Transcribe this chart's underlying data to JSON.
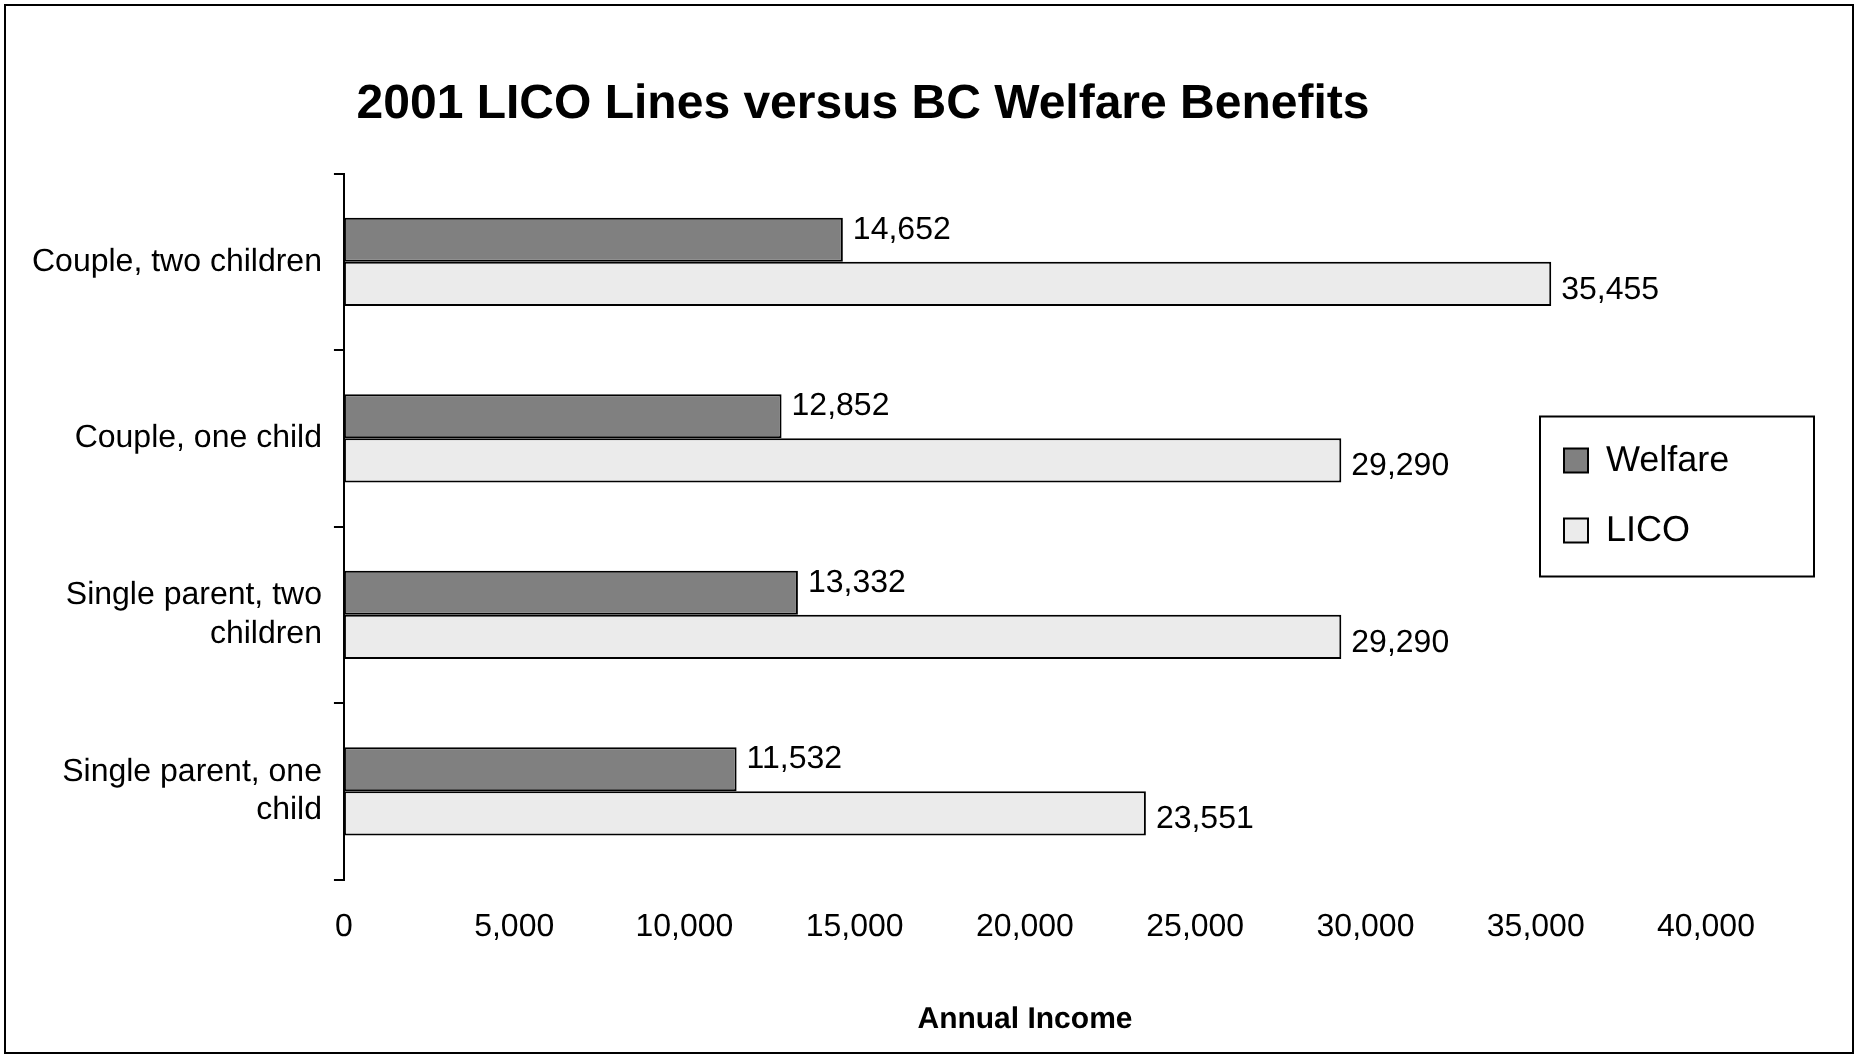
{
  "chart_data": {
    "type": "bar",
    "orientation": "horizontal",
    "title": "2001 LICO Lines versus BC Welfare Benefits",
    "xlabel": "Annual Income",
    "categories": [
      "Couple, two children",
      "Couple, one child",
      "Single parent, two children",
      "Single parent, one child"
    ],
    "series": [
      {
        "name": "Welfare",
        "color": "#808080",
        "values": [
          14652,
          12852,
          13332,
          11532
        ],
        "value_labels": [
          "14,652",
          "12,852",
          "13,332",
          "11,532"
        ]
      },
      {
        "name": "LICO",
        "color": "#ebebeb",
        "values": [
          35455,
          29290,
          29290,
          23551
        ],
        "value_labels": [
          "35,455",
          "29,290",
          "29,290",
          "23,551"
        ]
      }
    ],
    "xlim": [
      0,
      40000
    ],
    "xticks": [
      0,
      {
        "value": 5000,
        "label": "5,000"
      },
      {
        "value": 10000,
        "label": "10,000"
      },
      {
        "value": 15000,
        "label": "15,000"
      },
      {
        "value": 20000,
        "label": "20,000"
      },
      {
        "value": 25000,
        "label": "25,000"
      },
      {
        "value": 30000,
        "label": "30,000"
      },
      {
        "value": 35000,
        "label": "35,000"
      },
      {
        "value": 40000,
        "label": "40,000"
      }
    ],
    "grid": false,
    "legend": "right"
  }
}
